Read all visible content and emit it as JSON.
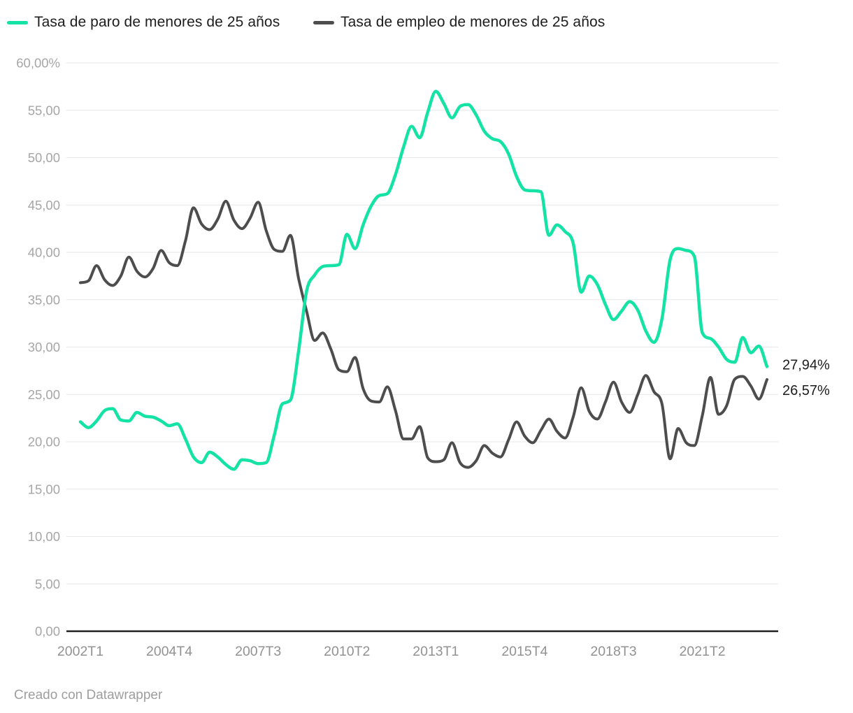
{
  "legend": {
    "items": [
      {
        "label": "Tasa de paro de menores de 25 años",
        "color": "#15e2a5"
      },
      {
        "label": "Tasa de empleo de menores de 25 años",
        "color": "#4d4d4d"
      }
    ]
  },
  "footer": {
    "text": "Creado con Datawrapper"
  },
  "chart_data": {
    "type": "line",
    "title": "",
    "xlabel": "",
    "ylabel": "",
    "x_type": "quarterly",
    "grid": true,
    "legend_position": "top-left",
    "ylim": [
      0,
      60
    ],
    "categories": [
      "2002T1",
      "2002T2",
      "2002T3",
      "2002T4",
      "2003T1",
      "2003T2",
      "2003T3",
      "2003T4",
      "2004T1",
      "2004T2",
      "2004T3",
      "2004T4",
      "2005T1",
      "2005T2",
      "2005T3",
      "2005T4",
      "2006T1",
      "2006T2",
      "2006T3",
      "2006T4",
      "2007T1",
      "2007T2",
      "2007T3",
      "2007T4",
      "2008T1",
      "2008T2",
      "2008T3",
      "2008T4",
      "2009T1",
      "2009T2",
      "2009T3",
      "2009T4",
      "2010T1",
      "2010T2",
      "2010T3",
      "2010T4",
      "2011T1",
      "2011T2",
      "2011T3",
      "2011T4",
      "2012T1",
      "2012T2",
      "2012T3",
      "2012T4",
      "2013T1",
      "2013T2",
      "2013T3",
      "2013T4",
      "2014T1",
      "2014T2",
      "2014T3",
      "2014T4",
      "2015T1",
      "2015T2",
      "2015T3",
      "2015T4",
      "2016T1",
      "2016T2",
      "2016T3",
      "2016T4",
      "2017T1",
      "2017T2",
      "2017T3",
      "2017T4",
      "2018T1",
      "2018T2",
      "2018T3",
      "2018T4",
      "2019T1",
      "2019T2",
      "2019T3",
      "2019T4",
      "2020T1",
      "2020T2",
      "2020T3",
      "2020T4",
      "2021T1",
      "2021T2",
      "2021T3",
      "2021T4",
      "2022T1",
      "2022T2",
      "2022T3",
      "2022T4",
      "2023T1",
      "2023T2"
    ],
    "series": [
      {
        "name": "Tasa de paro de menores de 25 años",
        "color": "#15e2a5",
        "end_label": "27,94%",
        "values": [
          22.1,
          21.5,
          22.2,
          23.3,
          23.5,
          22.3,
          22.2,
          23.1,
          22.7,
          22.6,
          22.2,
          21.7,
          21.9,
          20.3,
          18.4,
          17.8,
          18.9,
          18.4,
          17.6,
          17.1,
          18.1,
          18.0,
          17.7,
          17.8,
          20.7,
          24.0,
          24.4,
          29.5,
          35.9,
          37.6,
          38.5,
          38.6,
          38.7,
          41.9,
          40.4,
          42.9,
          44.9,
          46.0,
          46.2,
          48.2,
          51.1,
          53.3,
          52.1,
          54.8,
          57.0,
          55.7,
          54.2,
          55.4,
          55.6,
          54.5,
          52.8,
          52.0,
          51.7,
          50.4,
          48.0,
          46.6,
          46.5,
          46.4,
          41.8,
          42.9,
          42.2,
          41.0,
          35.8,
          37.5,
          36.6,
          34.5,
          32.9,
          33.8,
          34.8,
          33.9,
          31.7,
          30.5,
          33.0,
          39.2,
          40.4,
          40.2,
          39.6,
          31.5,
          30.9,
          30.0,
          28.7,
          28.4,
          31.0,
          29.4,
          30.1,
          27.94
        ]
      },
      {
        "name": "Tasa de empleo de menores de 25 años",
        "color": "#4d4d4d",
        "end_label": "26,57%",
        "values": [
          36.8,
          37.0,
          38.6,
          37.1,
          36.5,
          37.5,
          39.5,
          38.0,
          37.4,
          38.3,
          40.2,
          38.9,
          38.6,
          41.2,
          44.7,
          43.0,
          42.4,
          43.5,
          45.4,
          43.4,
          42.5,
          43.6,
          45.3,
          42.3,
          40.3,
          40.1,
          41.8,
          37.3,
          33.8,
          30.7,
          31.5,
          29.8,
          27.6,
          27.4,
          28.9,
          25.6,
          24.3,
          24.2,
          25.8,
          23.3,
          20.3,
          20.3,
          21.6,
          18.3,
          17.9,
          18.1,
          19.9,
          17.8,
          17.3,
          18.0,
          19.6,
          18.8,
          18.4,
          20.2,
          22.1,
          20.6,
          19.9,
          21.2,
          22.4,
          21.1,
          20.4,
          22.6,
          25.7,
          23.2,
          22.4,
          24.2,
          26.3,
          24.2,
          23.1,
          25.0,
          27.0,
          25.3,
          24.0,
          18.2,
          21.4,
          19.9,
          19.6,
          22.8,
          26.8,
          22.9,
          23.8,
          26.6,
          26.9,
          25.9,
          24.5,
          26.57
        ]
      }
    ],
    "y_ticks": {
      "values": [
        0,
        5,
        10,
        15,
        20,
        25,
        30,
        35,
        40,
        45,
        50,
        55,
        60
      ],
      "labels": [
        "0,00",
        "5,00",
        "10,00",
        "15,00",
        "20,00",
        "25,00",
        "30,00",
        "35,00",
        "40,00",
        "45,00",
        "50,00",
        "55,00",
        "60,00%"
      ]
    },
    "x_ticks": {
      "indices": [
        0,
        11,
        22,
        33,
        44,
        55,
        66,
        77
      ],
      "labels": [
        "2002T1",
        "2004T4",
        "2007T3",
        "2010T2",
        "2013T1",
        "2015T4",
        "2018T3",
        "2021T2"
      ]
    },
    "colors": {
      "paro_line": "#15e2a5",
      "empleo_line": "#4d4d4d",
      "gridline": "#e7e7e7",
      "axis_line": "#212121",
      "y_tick_text": "#a6a6a6",
      "x_tick_text": "#929292",
      "end_label_text": "#1d1d1d",
      "background": "#ffffff"
    }
  }
}
